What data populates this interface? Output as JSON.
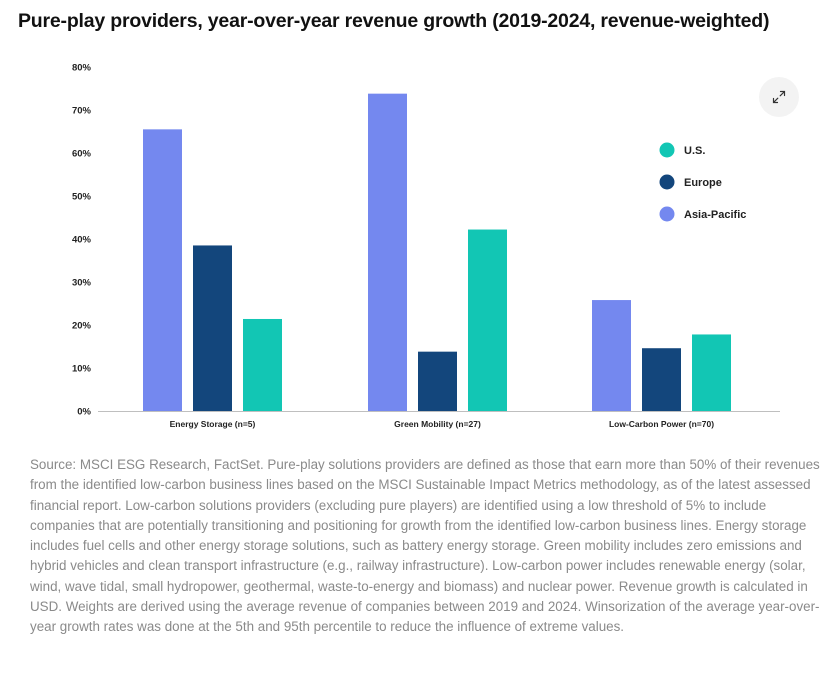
{
  "title": "Pure-play providers, year-over-year revenue growth (2019-2024, revenue-weighted)",
  "expand_button": {
    "icon": "expand-icon"
  },
  "chart_data": {
    "type": "bar",
    "title": "Pure-play providers, year-over-year revenue growth (2019-2024, revenue-weighted)",
    "xlabel": "",
    "ylabel": "",
    "categories": [
      "Energy Storage (n=5)",
      "Green Mobility (n=27)",
      "Low-Carbon Power (n=70)"
    ],
    "series": [
      {
        "name": "Asia-Pacific",
        "color": "#7488ef",
        "values": [
          65.5,
          73.8,
          25.8
        ]
      },
      {
        "name": "Europe",
        "color": "#13467c",
        "values": [
          38.5,
          13.8,
          14.6
        ]
      },
      {
        "name": "U.S.",
        "color": "#12c6b4",
        "values": [
          21.4,
          42.2,
          17.8
        ]
      }
    ],
    "legend_order": [
      "U.S.",
      "Europe",
      "Asia-Pacific"
    ],
    "ylim": [
      0,
      80
    ],
    "yticks": [
      0,
      10,
      20,
      30,
      40,
      50,
      60,
      70,
      80
    ],
    "ytick_labels": [
      "0%",
      "10%",
      "20%",
      "30%",
      "40%",
      "50%",
      "60%",
      "70%",
      "80%"
    ],
    "grid": false,
    "legend_position": "right"
  },
  "source_note": "Source: MSCI ESG Research, FactSet. Pure-play solutions providers are defined as those that earn more than 50% of their revenues from the identified low-carbon business lines based on the MSCI Sustainable Impact Metrics methodology, as of the latest assessed financial report. Low-carbon solutions providers (excluding pure players) are identified using a low threshold of 5% to include companies that are potentially transitioning and positioning for growth from the identified low-carbon business lines. Energy storage includes fuel cells and other energy storage solutions, such as battery energy storage. Green mobility includes zero emissions and hybrid vehicles and clean transport infrastructure (e.g., railway infrastructure). Low-carbon power includes renewable energy (solar, wind, wave tidal, small hydropower, geothermal, waste-to-energy and biomass) and nuclear power. Revenue growth is calculated in USD. Weights are derived using the average revenue of companies between 2019 and 2024. Winsorization of the average year-over-year growth rates was done at the 5th and 95th percentile to reduce the influence of extreme values."
}
